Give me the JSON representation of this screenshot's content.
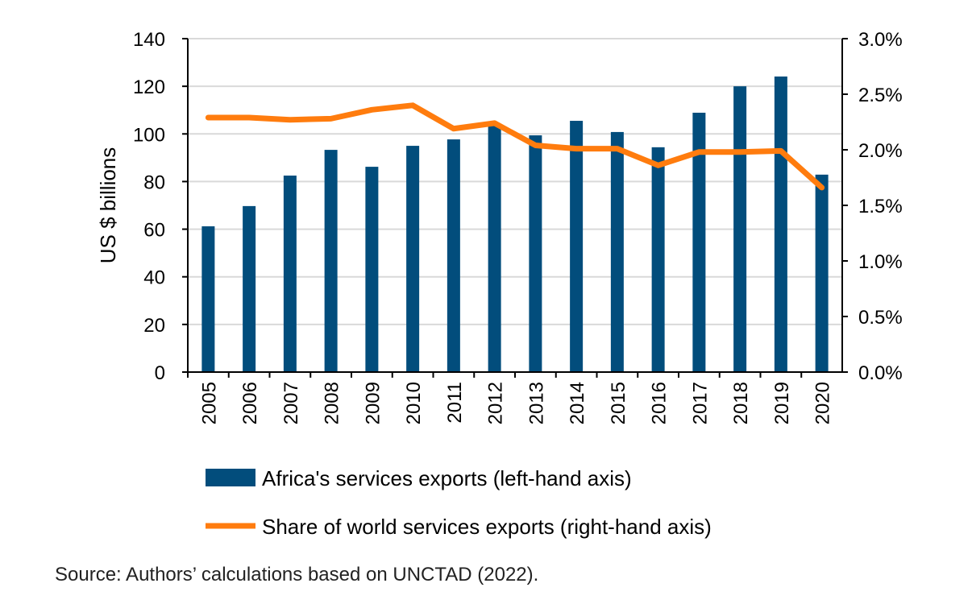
{
  "chart_data": {
    "type": "bar",
    "categories": [
      "2005",
      "2006",
      "2007",
      "2008",
      "2009",
      "2010",
      "2011",
      "2012",
      "2013",
      "2014",
      "2015",
      "2016",
      "2017",
      "2018",
      "2019",
      "2020"
    ],
    "series": [
      {
        "name": "Africa's services exports (left-hand axis)",
        "type": "bar",
        "axis": "left",
        "color": "#024d7c",
        "values": [
          61.2,
          69.7,
          82.5,
          93.3,
          86.2,
          95.0,
          97.7,
          103.5,
          99.4,
          105.5,
          100.8,
          94.4,
          108.9,
          120.0,
          124.1,
          82.9
        ]
      },
      {
        "name": "Share of world services exports (right-hand axis)",
        "type": "line",
        "axis": "right",
        "color": "#ff7c0e",
        "values": [
          2.29,
          2.29,
          2.27,
          2.28,
          2.36,
          2.4,
          2.19,
          2.24,
          2.04,
          2.01,
          2.01,
          1.86,
          1.98,
          1.98,
          1.99,
          1.66
        ]
      }
    ],
    "ylabel": "US $ billions",
    "ylim": [
      0,
      140
    ],
    "yticks": [
      "0",
      "20",
      "40",
      "60",
      "80",
      "100",
      "120",
      "140"
    ],
    "y2lim": [
      0,
      3.0
    ],
    "y2ticks": [
      "0.0%",
      "0.5%",
      "1.0%",
      "1.5%",
      "2.0%",
      "2.5%",
      "3.0%"
    ],
    "grid": true,
    "legend": "bottom"
  },
  "source": "Source: Authors’ calculations based on UNCTAD (2022)."
}
